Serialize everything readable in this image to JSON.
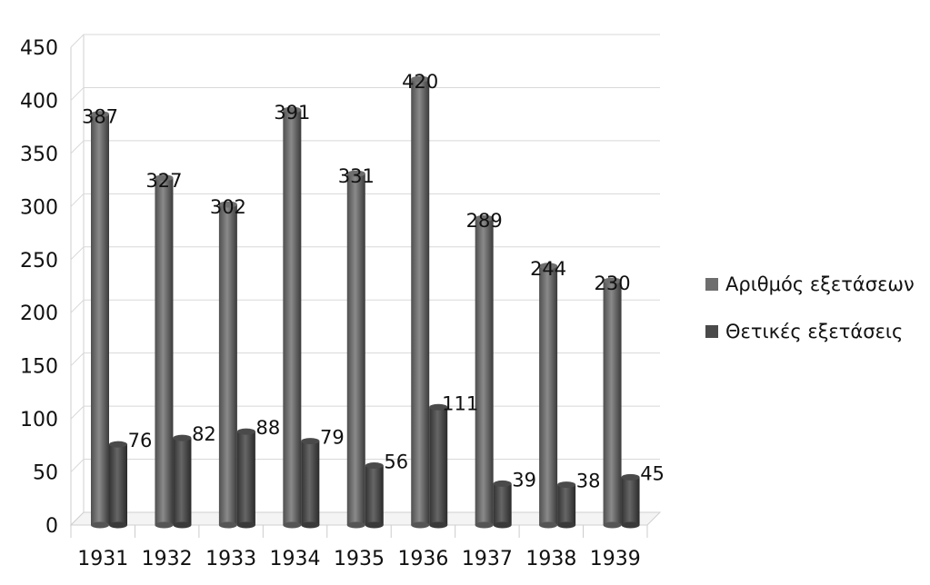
{
  "chart_data": {
    "type": "bar",
    "categories": [
      "1931",
      "1932",
      "1933",
      "1934",
      "1935",
      "1936",
      "1937",
      "1938",
      "1939"
    ],
    "series": [
      {
        "name": "Αριθμός εξετάσεων",
        "values": [
          387,
          327,
          302,
          391,
          331,
          420,
          289,
          244,
          230
        ],
        "color": "#6e6e6e"
      },
      {
        "name": "Θετικές εξετάσεις",
        "values": [
          76,
          82,
          88,
          79,
          56,
          111,
          39,
          38,
          45
        ],
        "color": "#4a4a4a"
      }
    ],
    "ylim": [
      0,
      450
    ],
    "yticks": [
      0,
      50,
      100,
      150,
      200,
      250,
      300,
      350,
      400,
      450
    ],
    "grid": true,
    "legend_position": "right",
    "title": "",
    "xlabel": "",
    "ylabel": ""
  }
}
